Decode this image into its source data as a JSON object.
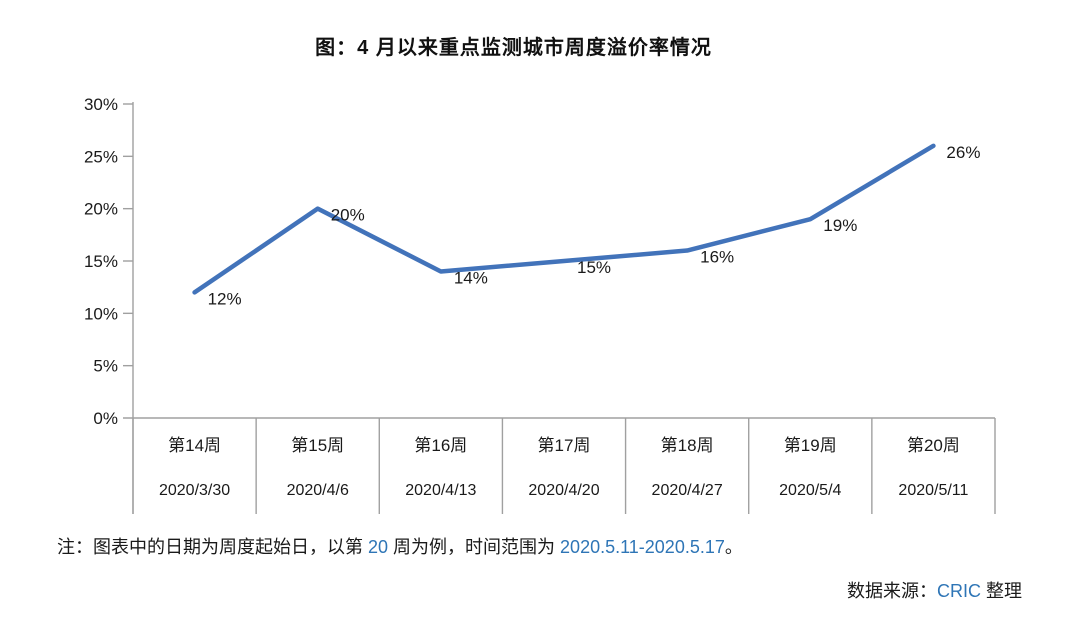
{
  "page": {
    "title": "图：4 月以来重点监测城市周度溢价率情况",
    "note": {
      "prefix": "注：图表中的日期为周度起始日，以第 ",
      "week_num": "20",
      "middle": " 周为例，时间范围为 ",
      "range": "2020.5.11-2020.5.17",
      "suffix": "。"
    },
    "source": {
      "prefix": "数据来源：",
      "org": "CRIC",
      "suffix": " 整理"
    }
  },
  "colors": {
    "line": "#4273BA",
    "axis": "#A0A0A0",
    "text": "#1A1A1A",
    "accent_blue": "#2E75B6"
  },
  "chart_data": {
    "type": "line",
    "title": "图：4 月以来重点监测城市周度溢价率情况",
    "categories": [
      "第14周",
      "第15周",
      "第16周",
      "第17周",
      "第18周",
      "第19周",
      "第20周"
    ],
    "category_dates": [
      "2020/3/30",
      "2020/4/6",
      "2020/4/13",
      "2020/4/20",
      "2020/4/27",
      "2020/5/4",
      "2020/5/11"
    ],
    "values": [
      12,
      20,
      14,
      15,
      16,
      19,
      26
    ],
    "point_labels": [
      "12%",
      "20%",
      "14%",
      "15%",
      "16%",
      "19%",
      "26%"
    ],
    "y_tick_labels": [
      "0%",
      "5%",
      "10%",
      "15%",
      "20%",
      "25%",
      "30%"
    ],
    "y_ticks": [
      0,
      5,
      10,
      15,
      20,
      25,
      30
    ],
    "ylim": [
      0,
      30
    ],
    "xlabel": "",
    "ylabel": "",
    "grid": "off",
    "legend": "none"
  }
}
